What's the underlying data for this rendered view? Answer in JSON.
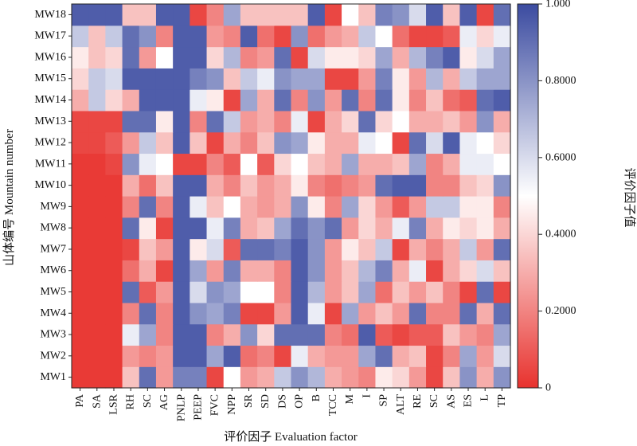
{
  "chart_data": {
    "type": "heatmap",
    "xlabel": "评价因子 Evaluation factor",
    "ylabel": "山体编号 Mountain number",
    "colorbar_label": "评价因子值",
    "colorbar_ticks": [
      "0",
      "0.2000",
      "0.4000",
      "0.6000",
      "0.8000",
      "1.000"
    ],
    "colorbar_range": [
      0,
      1
    ],
    "colors": {
      "low": "#e8322e",
      "mid": "#ffffff",
      "high": "#3b4ba0"
    },
    "x_categories": [
      "PA",
      "SA",
      "LSR",
      "RH",
      "SC",
      "AG",
      "PNLP",
      "PEEP",
      "FVC",
      "NPP",
      "SR",
      "SD",
      "DS",
      "OP",
      "B",
      "TCC",
      "M",
      "I",
      "SP",
      "ALT",
      "RE",
      "SC",
      "AS",
      "ES",
      "L",
      "TP"
    ],
    "y_categories": [
      "MW1",
      "MW2",
      "MW3",
      "MW4",
      "MW5",
      "MW6",
      "MW7",
      "MW8",
      "MW9",
      "MW10",
      "MW11",
      "MW12",
      "MW13",
      "MW14",
      "MW15",
      "MW16",
      "MW17",
      "MW18"
    ],
    "values": [
      [
        0.02,
        0.02,
        0.02,
        0.35,
        0.9,
        0.25,
        0.85,
        0.85,
        0.05,
        0.5,
        0.25,
        0.3,
        0.65,
        0.8,
        0.7,
        0.3,
        0.25,
        0.2,
        0.45,
        0.4,
        0.25,
        0.05,
        0.35,
        0.8,
        0.3,
        0.8
      ],
      [
        0.02,
        0.02,
        0.02,
        0.25,
        0.2,
        0.25,
        0.95,
        0.95,
        0.75,
        0.95,
        0.15,
        0.2,
        0.05,
        0.55,
        0.3,
        0.25,
        0.25,
        0.75,
        0.9,
        0.3,
        0.35,
        0.05,
        0.2,
        0.75,
        0.25,
        0.6
      ],
      [
        0.02,
        0.02,
        0.02,
        0.55,
        0.75,
        0.2,
        0.95,
        0.95,
        0.2,
        0.3,
        0.8,
        0.4,
        0.9,
        0.9,
        0.9,
        0.2,
        0.15,
        0.95,
        0.1,
        0.05,
        0.1,
        0.1,
        0.35,
        0.25,
        0.2,
        0.75
      ],
      [
        0.02,
        0.02,
        0.02,
        0.2,
        0.9,
        0.2,
        0.95,
        0.8,
        0.75,
        0.85,
        0.05,
        0.05,
        0.25,
        0.95,
        0.55,
        0.05,
        0.75,
        0.25,
        0.35,
        0.25,
        0.9,
        0.2,
        0.2,
        0.9,
        0.3,
        0.9
      ],
      [
        0.02,
        0.02,
        0.02,
        0.9,
        0.1,
        0.25,
        0.95,
        0.6,
        0.8,
        0.75,
        0.5,
        0.5,
        0.2,
        0.95,
        0.7,
        0.25,
        0.35,
        0.75,
        0.15,
        0.35,
        0.25,
        0.35,
        0.2,
        0.05,
        0.9,
        0.05
      ],
      [
        0.02,
        0.02,
        0.02,
        0.15,
        0.3,
        0.05,
        0.95,
        0.75,
        0.25,
        0.85,
        0.3,
        0.3,
        0.2,
        0.95,
        0.8,
        0.25,
        0.35,
        0.7,
        0.85,
        0.3,
        0.55,
        0.05,
        0.3,
        0.4,
        0.6,
        0.35
      ],
      [
        0.02,
        0.02,
        0.02,
        0.05,
        0.35,
        0.25,
        0.95,
        0.45,
        0.6,
        0.1,
        0.9,
        0.9,
        0.85,
        0.95,
        0.8,
        0.25,
        0.45,
        0.35,
        0.65,
        0.05,
        0.3,
        0.2,
        0.3,
        0.65,
        0.25,
        0.9
      ],
      [
        0.02,
        0.02,
        0.02,
        0.9,
        0.45,
        0.05,
        0.95,
        0.95,
        0.55,
        0.85,
        0.3,
        0.35,
        0.75,
        0.9,
        0.8,
        0.9,
        0.25,
        0.4,
        0.3,
        0.55,
        0.85,
        0.3,
        0.45,
        0.4,
        0.45,
        0.3
      ],
      [
        0.02,
        0.02,
        0.02,
        0.2,
        0.9,
        0.2,
        0.95,
        0.55,
        0.35,
        0.5,
        0.3,
        0.25,
        0.3,
        0.8,
        0.45,
        0.2,
        0.75,
        0.4,
        0.25,
        0.1,
        0.25,
        0.65,
        0.65,
        0.45,
        0.45,
        0.2
      ],
      [
        0.02,
        0.02,
        0.02,
        0.3,
        0.15,
        0.35,
        0.95,
        0.95,
        0.3,
        0.2,
        0.35,
        0.25,
        0.3,
        0.45,
        0.2,
        0.15,
        0.2,
        0.25,
        0.9,
        0.95,
        0.95,
        0.2,
        0.2,
        0.35,
        0.4,
        0.8
      ],
      [
        0.02,
        0.02,
        0.05,
        0.8,
        0.55,
        0.5,
        0.05,
        0.05,
        0.2,
        0.1,
        0.5,
        0.1,
        0.4,
        0.5,
        0.35,
        0.3,
        0.75,
        0.3,
        0.3,
        0.35,
        0.75,
        0.2,
        0.3,
        0.55,
        0.55,
        0.5
      ],
      [
        0.05,
        0.05,
        0.1,
        0.25,
        0.65,
        0.35,
        0.95,
        0.35,
        0.05,
        0.3,
        0.2,
        0.35,
        0.8,
        0.75,
        0.45,
        0.3,
        0.3,
        0.55,
        0.5,
        0.05,
        0.9,
        0.6,
        0.95,
        0.55,
        0.5,
        0.4
      ],
      [
        0.05,
        0.05,
        0.05,
        0.9,
        0.9,
        0.45,
        0.95,
        0.2,
        0.9,
        0.65,
        0.25,
        0.3,
        0.2,
        0.55,
        0.05,
        0.3,
        0.4,
        0.9,
        0.4,
        0.5,
        0.3,
        0.3,
        0.35,
        0.25,
        0.8,
        0.3
      ],
      [
        0.3,
        0.65,
        0.4,
        0.3,
        0.95,
        0.95,
        0.95,
        0.55,
        0.45,
        0.05,
        0.75,
        0.3,
        0.9,
        0.2,
        0.8,
        0.25,
        0.9,
        0.2,
        0.9,
        0.45,
        0.2,
        0.35,
        0.15,
        0.1,
        0.9,
        0.95
      ],
      [
        0.4,
        0.65,
        0.6,
        0.95,
        0.95,
        0.95,
        0.95,
        0.85,
        0.8,
        0.35,
        0.65,
        0.55,
        0.8,
        0.75,
        0.75,
        0.05,
        0.05,
        0.25,
        0.85,
        0.45,
        0.25,
        0.7,
        0.3,
        0.65,
        0.75,
        0.75
      ],
      [
        0.45,
        0.35,
        0.4,
        0.9,
        0.25,
        0.5,
        0.95,
        0.95,
        0.4,
        0.7,
        0.2,
        0.25,
        0.9,
        0.05,
        0.6,
        0.45,
        0.45,
        0.4,
        0.75,
        0.3,
        0.7,
        0.85,
        0.95,
        0.45,
        0.6,
        0.75
      ],
      [
        0.65,
        0.35,
        0.65,
        0.9,
        0.8,
        0.2,
        0.95,
        0.95,
        0.25,
        0.2,
        0.95,
        0.15,
        0.05,
        0.8,
        0.15,
        0.25,
        0.3,
        0.65,
        0.5,
        0.15,
        0.05,
        0.05,
        0.1,
        0.55,
        0.4,
        0.55
      ],
      [
        0.95,
        0.95,
        0.95,
        0.35,
        0.35,
        0.95,
        0.95,
        0.05,
        0.2,
        0.75,
        0.35,
        0.35,
        0.35,
        0.35,
        0.95,
        0.05,
        0.5,
        0.35,
        0.85,
        0.8,
        0.6,
        0.95,
        0.35,
        0.95,
        0.05,
        0.9
      ]
    ]
  }
}
